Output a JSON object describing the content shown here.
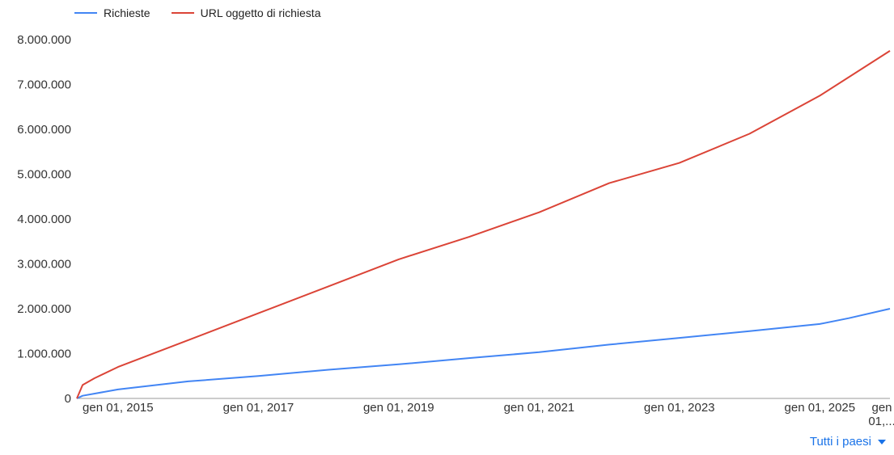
{
  "chart_data": {
    "type": "line",
    "legend": [
      "Richieste",
      "URL oggetto di richiesta"
    ],
    "y_ticks": [
      "0",
      "1.000.000",
      "2.000.000",
      "3.000.000",
      "4.000.000",
      "5.000.000",
      "6.000.000",
      "7.000.000",
      "8.000.000"
    ],
    "x_ticks": [
      "gen 01, 2015",
      "gen 01, 2017",
      "gen 01, 2019",
      "gen 01, 2021",
      "gen 01, 2023",
      "gen 01, 2025"
    ],
    "x_last_tick": [
      "gen",
      "01,..."
    ],
    "ylim": [
      0,
      8000000
    ],
    "xlim": [
      "2014-06-01",
      "2026-01-01"
    ],
    "grid": false,
    "legend_position": "top-left",
    "series": [
      {
        "name": "Richieste",
        "color": "#4285f4",
        "points": [
          [
            "2014-06-01",
            0
          ],
          [
            "2014-07-01",
            60000
          ],
          [
            "2015-01-01",
            200000
          ],
          [
            "2016-01-01",
            380000
          ],
          [
            "2017-01-01",
            500000
          ],
          [
            "2018-01-01",
            640000
          ],
          [
            "2019-01-01",
            760000
          ],
          [
            "2020-01-01",
            900000
          ],
          [
            "2021-01-01",
            1030000
          ],
          [
            "2022-01-01",
            1200000
          ],
          [
            "2023-01-01",
            1350000
          ],
          [
            "2024-01-01",
            1500000
          ],
          [
            "2025-01-01",
            1660000
          ],
          [
            "2025-06-01",
            1790000
          ],
          [
            "2026-01-01",
            2000000
          ]
        ]
      },
      {
        "name": "URL oggetto di richiesta",
        "color": "#db4437",
        "points": [
          [
            "2014-06-01",
            0
          ],
          [
            "2014-07-01",
            300000
          ],
          [
            "2014-09-01",
            450000
          ],
          [
            "2015-01-01",
            700000
          ],
          [
            "2016-01-01",
            1300000
          ],
          [
            "2017-01-01",
            1900000
          ],
          [
            "2018-01-01",
            2500000
          ],
          [
            "2019-01-01",
            3100000
          ],
          [
            "2020-01-01",
            3600000
          ],
          [
            "2021-01-01",
            4150000
          ],
          [
            "2022-01-01",
            4800000
          ],
          [
            "2023-01-01",
            5250000
          ],
          [
            "2024-01-01",
            5900000
          ],
          [
            "2025-01-01",
            6750000
          ],
          [
            "2026-01-01",
            7750000
          ]
        ]
      }
    ]
  },
  "footer": {
    "filter_label": "Tutti i paesi"
  }
}
